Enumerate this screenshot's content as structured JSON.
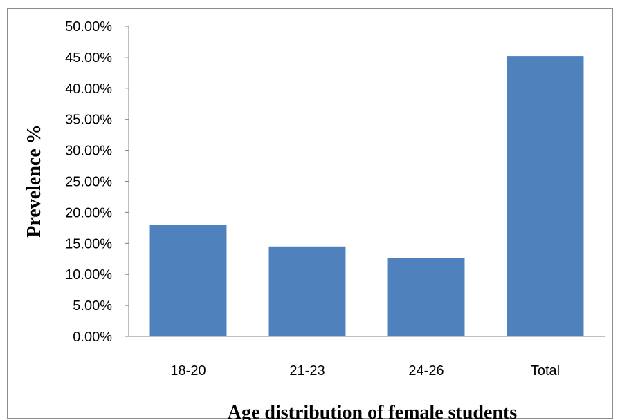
{
  "chart_data": {
    "type": "bar",
    "categories": [
      "18-20",
      "21-23",
      "24-26",
      "Total"
    ],
    "values": [
      0.18,
      0.145,
      0.126,
      0.452
    ],
    "xlabel": "Age distribution of female students",
    "ylabel": "Prevelence %",
    "ylim": [
      0,
      0.5
    ],
    "yticks": [
      "0.00%",
      "5.00%",
      "10.00%",
      "15.00%",
      "20.00%",
      "25.00%",
      "30.00%",
      "35.00%",
      "40.00%",
      "45.00%",
      "50.00%"
    ],
    "grid": false,
    "legend": "none",
    "bar_color": "#4f81bd"
  }
}
